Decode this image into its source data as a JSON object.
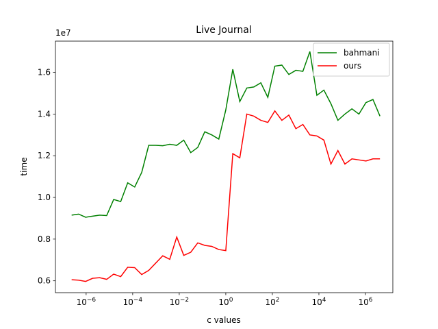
{
  "chart_data": {
    "type": "line",
    "title": "Live Journal",
    "x_label": "c values",
    "y_label": "time",
    "y_offset_label": "1e7",
    "xscale": "log",
    "legend": "upper right",
    "x": [
      2.384185791015625e-07,
      4.76837158203125e-07,
      9.5367431640625e-07,
      1.9073486328125e-06,
      3.814697265625e-06,
      7.62939453125e-06,
      1.52587890625e-05,
      3.0517578125e-05,
      6.103515625e-05,
      0.0001220703125,
      0.000244140625,
      0.00048828125,
      0.0009765625,
      0.001953125,
      0.00390625,
      0.0078125,
      0.015625,
      0.03125,
      0.0625,
      0.125,
      0.25,
      0.5,
      1,
      2,
      4,
      8,
      16,
      32,
      64,
      128,
      256,
      512,
      1024,
      2048,
      4096,
      8192,
      16384,
      32768,
      65536,
      131072,
      262144,
      524288,
      1048576,
      2097152,
      4194304
    ],
    "series": [
      {
        "name": "bahmani",
        "color": "#008000",
        "values": [
          0.915,
          0.92,
          0.905,
          0.91,
          0.915,
          0.913,
          0.99,
          0.98,
          1.07,
          1.05,
          1.12,
          1.25,
          1.25,
          1.248,
          1.255,
          1.25,
          1.275,
          1.215,
          1.24,
          1.315,
          1.3,
          1.28,
          1.42,
          1.615,
          1.46,
          1.525,
          1.53,
          1.55,
          1.48,
          1.63,
          1.635,
          1.59,
          1.61,
          1.605,
          1.7,
          1.49,
          1.515,
          1.45,
          1.37,
          1.4,
          1.425,
          1.4,
          1.455,
          1.47,
          1.39
        ]
      },
      {
        "name": "ours",
        "color": "#ff0000",
        "values": [
          0.605,
          0.603,
          0.597,
          0.612,
          0.615,
          0.607,
          0.632,
          0.62,
          0.665,
          0.663,
          0.63,
          0.65,
          0.685,
          0.72,
          0.703,
          0.81,
          0.722,
          0.737,
          0.782,
          0.77,
          0.765,
          0.75,
          0.745,
          1.21,
          1.19,
          1.4,
          1.39,
          1.37,
          1.36,
          1.415,
          1.37,
          1.395,
          1.33,
          1.35,
          1.3,
          1.295,
          1.275,
          1.16,
          1.225,
          1.16,
          1.185,
          1.18,
          1.175,
          1.185,
          1.185
        ]
      }
    ],
    "xlim": [
      4.8e-08,
      15000000.0
    ],
    "xticks": [
      {
        "value": 1e-06,
        "label": "10",
        "exponent": "−6"
      },
      {
        "value": 0.0001,
        "label": "10",
        "exponent": "−4"
      },
      {
        "value": 0.01,
        "label": "10",
        "exponent": "−2"
      },
      {
        "value": 1,
        "label": "10",
        "exponent": "0"
      },
      {
        "value": 100,
        "label": "10",
        "exponent": "2"
      },
      {
        "value": 10000,
        "label": "10",
        "exponent": "4"
      },
      {
        "value": 1000000,
        "label": "10",
        "exponent": "6"
      }
    ],
    "ylim": [
      0.543,
      1.75
    ],
    "yticks": [
      0.6,
      0.8,
      {
        "value": 1,
        "label": "1.0"
      },
      1.2,
      1.4,
      1.6
    ]
  }
}
